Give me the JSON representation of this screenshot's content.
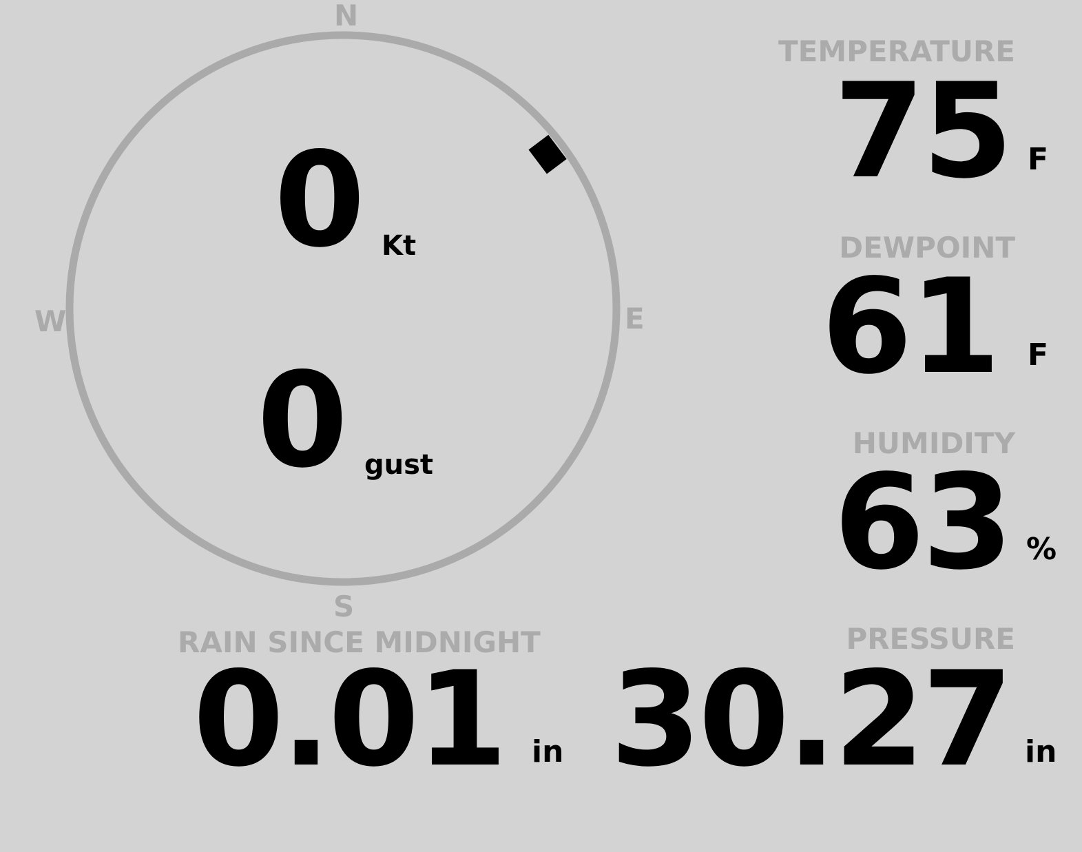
{
  "wind": {
    "compass": {
      "north": "N",
      "east": "E",
      "south": "S",
      "west": "W"
    },
    "direction_deg": 53,
    "speed": "0",
    "speed_unit": "Kt",
    "gust": "0",
    "gust_unit": "gust"
  },
  "temperature": {
    "label": "TEMPERATURE",
    "value": "75",
    "unit": "F"
  },
  "dewpoint": {
    "label": "DEWPOINT",
    "value": "61",
    "unit": "F"
  },
  "humidity": {
    "label": "HUMIDITY",
    "value": "63",
    "unit": "%"
  },
  "rain": {
    "label": "RAIN SINCE MIDNIGHT",
    "value": "0.01",
    "unit": "in"
  },
  "pressure": {
    "label": "PRESSURE",
    "value": "30.27",
    "unit": "in"
  },
  "colors": {
    "background": "#d3d3d3",
    "label": "#aaaaaa",
    "value": "#000000"
  }
}
